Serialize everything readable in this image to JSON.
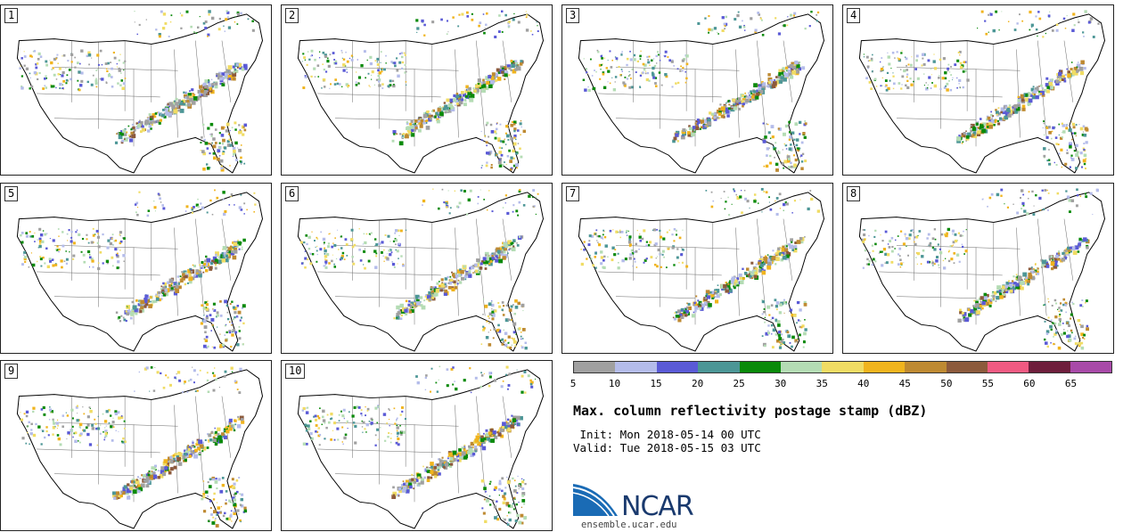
{
  "stamps": [
    {
      "label": "1"
    },
    {
      "label": "2"
    },
    {
      "label": "3"
    },
    {
      "label": "4"
    },
    {
      "label": "5"
    },
    {
      "label": "6"
    },
    {
      "label": "7"
    },
    {
      "label": "8"
    },
    {
      "label": "9"
    },
    {
      "label": "10"
    }
  ],
  "legend": {
    "colors": [
      "#a0a0a0",
      "#b4bcea",
      "#5a5ad6",
      "#4c9696",
      "#0a8a0a",
      "#b4dcb4",
      "#f0dc64",
      "#f0b41e",
      "#be8a32",
      "#8c5a3c",
      "#f05a82",
      "#6e1e3c",
      "#a84aa8"
    ],
    "ticks": [
      "5",
      "10",
      "15",
      "20",
      "25",
      "30",
      "35",
      "40",
      "45",
      "50",
      "55",
      "60",
      "65"
    ]
  },
  "title": "Max. column reflectivity postage stamp (dBZ)",
  "init": " Init: Mon 2018-05-14 00 UTC",
  "valid": "Valid: Tue 2018-05-15 03 UTC",
  "logo": {
    "text": "NCAR",
    "url": "ensemble.ucar.edu"
  }
}
